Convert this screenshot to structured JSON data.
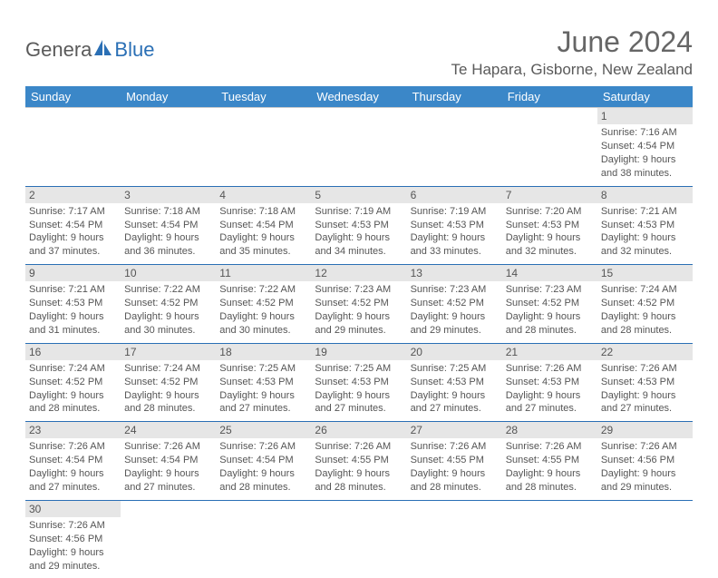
{
  "logo": {
    "text1": "Genera",
    "text2": "Blue"
  },
  "title": "June 2024",
  "location": "Te Hapara, Gisborne, New Zealand",
  "colors": {
    "header_bg": "#3b87c8",
    "header_text": "#ffffff",
    "rule": "#2a6fb5",
    "daynum_bg": "#e6e6e6",
    "text": "#555555",
    "logo_blue": "#2a6fb5"
  },
  "day_headers": [
    "Sunday",
    "Monday",
    "Tuesday",
    "Wednesday",
    "Thursday",
    "Friday",
    "Saturday"
  ],
  "weeks": [
    [
      {
        "empty": true
      },
      {
        "empty": true
      },
      {
        "empty": true
      },
      {
        "empty": true
      },
      {
        "empty": true
      },
      {
        "empty": true
      },
      {
        "n": "1",
        "sunrise": "Sunrise: 7:16 AM",
        "sunset": "Sunset: 4:54 PM",
        "day1": "Daylight: 9 hours",
        "day2": "and 38 minutes."
      }
    ],
    [
      {
        "n": "2",
        "sunrise": "Sunrise: 7:17 AM",
        "sunset": "Sunset: 4:54 PM",
        "day1": "Daylight: 9 hours",
        "day2": "and 37 minutes."
      },
      {
        "n": "3",
        "sunrise": "Sunrise: 7:18 AM",
        "sunset": "Sunset: 4:54 PM",
        "day1": "Daylight: 9 hours",
        "day2": "and 36 minutes."
      },
      {
        "n": "4",
        "sunrise": "Sunrise: 7:18 AM",
        "sunset": "Sunset: 4:54 PM",
        "day1": "Daylight: 9 hours",
        "day2": "and 35 minutes."
      },
      {
        "n": "5",
        "sunrise": "Sunrise: 7:19 AM",
        "sunset": "Sunset: 4:53 PM",
        "day1": "Daylight: 9 hours",
        "day2": "and 34 minutes."
      },
      {
        "n": "6",
        "sunrise": "Sunrise: 7:19 AM",
        "sunset": "Sunset: 4:53 PM",
        "day1": "Daylight: 9 hours",
        "day2": "and 33 minutes."
      },
      {
        "n": "7",
        "sunrise": "Sunrise: 7:20 AM",
        "sunset": "Sunset: 4:53 PM",
        "day1": "Daylight: 9 hours",
        "day2": "and 32 minutes."
      },
      {
        "n": "8",
        "sunrise": "Sunrise: 7:21 AM",
        "sunset": "Sunset: 4:53 PM",
        "day1": "Daylight: 9 hours",
        "day2": "and 32 minutes."
      }
    ],
    [
      {
        "n": "9",
        "sunrise": "Sunrise: 7:21 AM",
        "sunset": "Sunset: 4:53 PM",
        "day1": "Daylight: 9 hours",
        "day2": "and 31 minutes."
      },
      {
        "n": "10",
        "sunrise": "Sunrise: 7:22 AM",
        "sunset": "Sunset: 4:52 PM",
        "day1": "Daylight: 9 hours",
        "day2": "and 30 minutes."
      },
      {
        "n": "11",
        "sunrise": "Sunrise: 7:22 AM",
        "sunset": "Sunset: 4:52 PM",
        "day1": "Daylight: 9 hours",
        "day2": "and 30 minutes."
      },
      {
        "n": "12",
        "sunrise": "Sunrise: 7:23 AM",
        "sunset": "Sunset: 4:52 PM",
        "day1": "Daylight: 9 hours",
        "day2": "and 29 minutes."
      },
      {
        "n": "13",
        "sunrise": "Sunrise: 7:23 AM",
        "sunset": "Sunset: 4:52 PM",
        "day1": "Daylight: 9 hours",
        "day2": "and 29 minutes."
      },
      {
        "n": "14",
        "sunrise": "Sunrise: 7:23 AM",
        "sunset": "Sunset: 4:52 PM",
        "day1": "Daylight: 9 hours",
        "day2": "and 28 minutes."
      },
      {
        "n": "15",
        "sunrise": "Sunrise: 7:24 AM",
        "sunset": "Sunset: 4:52 PM",
        "day1": "Daylight: 9 hours",
        "day2": "and 28 minutes."
      }
    ],
    [
      {
        "n": "16",
        "sunrise": "Sunrise: 7:24 AM",
        "sunset": "Sunset: 4:52 PM",
        "day1": "Daylight: 9 hours",
        "day2": "and 28 minutes."
      },
      {
        "n": "17",
        "sunrise": "Sunrise: 7:24 AM",
        "sunset": "Sunset: 4:52 PM",
        "day1": "Daylight: 9 hours",
        "day2": "and 28 minutes."
      },
      {
        "n": "18",
        "sunrise": "Sunrise: 7:25 AM",
        "sunset": "Sunset: 4:53 PM",
        "day1": "Daylight: 9 hours",
        "day2": "and 27 minutes."
      },
      {
        "n": "19",
        "sunrise": "Sunrise: 7:25 AM",
        "sunset": "Sunset: 4:53 PM",
        "day1": "Daylight: 9 hours",
        "day2": "and 27 minutes."
      },
      {
        "n": "20",
        "sunrise": "Sunrise: 7:25 AM",
        "sunset": "Sunset: 4:53 PM",
        "day1": "Daylight: 9 hours",
        "day2": "and 27 minutes."
      },
      {
        "n": "21",
        "sunrise": "Sunrise: 7:26 AM",
        "sunset": "Sunset: 4:53 PM",
        "day1": "Daylight: 9 hours",
        "day2": "and 27 minutes."
      },
      {
        "n": "22",
        "sunrise": "Sunrise: 7:26 AM",
        "sunset": "Sunset: 4:53 PM",
        "day1": "Daylight: 9 hours",
        "day2": "and 27 minutes."
      }
    ],
    [
      {
        "n": "23",
        "sunrise": "Sunrise: 7:26 AM",
        "sunset": "Sunset: 4:54 PM",
        "day1": "Daylight: 9 hours",
        "day2": "and 27 minutes."
      },
      {
        "n": "24",
        "sunrise": "Sunrise: 7:26 AM",
        "sunset": "Sunset: 4:54 PM",
        "day1": "Daylight: 9 hours",
        "day2": "and 27 minutes."
      },
      {
        "n": "25",
        "sunrise": "Sunrise: 7:26 AM",
        "sunset": "Sunset: 4:54 PM",
        "day1": "Daylight: 9 hours",
        "day2": "and 28 minutes."
      },
      {
        "n": "26",
        "sunrise": "Sunrise: 7:26 AM",
        "sunset": "Sunset: 4:55 PM",
        "day1": "Daylight: 9 hours",
        "day2": "and 28 minutes."
      },
      {
        "n": "27",
        "sunrise": "Sunrise: 7:26 AM",
        "sunset": "Sunset: 4:55 PM",
        "day1": "Daylight: 9 hours",
        "day2": "and 28 minutes."
      },
      {
        "n": "28",
        "sunrise": "Sunrise: 7:26 AM",
        "sunset": "Sunset: 4:55 PM",
        "day1": "Daylight: 9 hours",
        "day2": "and 28 minutes."
      },
      {
        "n": "29",
        "sunrise": "Sunrise: 7:26 AM",
        "sunset": "Sunset: 4:56 PM",
        "day1": "Daylight: 9 hours",
        "day2": "and 29 minutes."
      }
    ],
    [
      {
        "n": "30",
        "sunrise": "Sunrise: 7:26 AM",
        "sunset": "Sunset: 4:56 PM",
        "day1": "Daylight: 9 hours",
        "day2": "and 29 minutes."
      },
      {
        "empty": true
      },
      {
        "empty": true
      },
      {
        "empty": true
      },
      {
        "empty": true
      },
      {
        "empty": true
      },
      {
        "empty": true
      }
    ]
  ]
}
